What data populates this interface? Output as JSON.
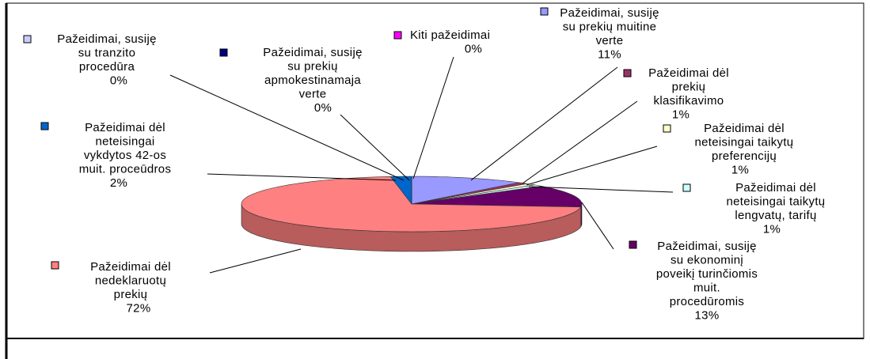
{
  "chart_data": {
    "type": "pie",
    "categories": [
      "Kiti pažeidimai",
      "Pažeidimai, susiję\nsu prekių muitine\nverte",
      "Pažeidimai dėl\nprekių\nklasifikavimo",
      "Pažeidimai dėl\nneteisingai taikytų\npreferencijų",
      "Pažeidimai  dėl\nneteisingai taikytų\nlengvatų, tarifų",
      "Pažeidimai, susiję\nsu ekonominį\npoveikį turinčiomis\nmuit.\nprocedūromis",
      "Pažeidimai dėl\nnedeklaruotų\nprekių",
      "Pažeidimai dėl\nneteisingai\nvykdytos 42-os\nmuit. proceūdros",
      "Pažeidimai, susiję\nsu tranzito\nprocedūra",
      "Pažeidimai, susiję\nsu prekių\napmokestinamaja\nverte"
    ],
    "values": [
      0,
      11,
      1,
      1,
      1,
      13,
      72,
      2,
      0,
      0
    ],
    "value_labels": [
      "0%",
      "11%",
      "1%",
      "1%",
      "1%",
      "13%",
      "72%",
      "2%",
      "0%",
      "0%"
    ],
    "colors": [
      "#ff00ff",
      "#9999ff",
      "#993366",
      "#ffffcc",
      "#ccffff",
      "#660066",
      "#ff8080",
      "#0066cc",
      "#ccccff",
      "#000080"
    ]
  }
}
